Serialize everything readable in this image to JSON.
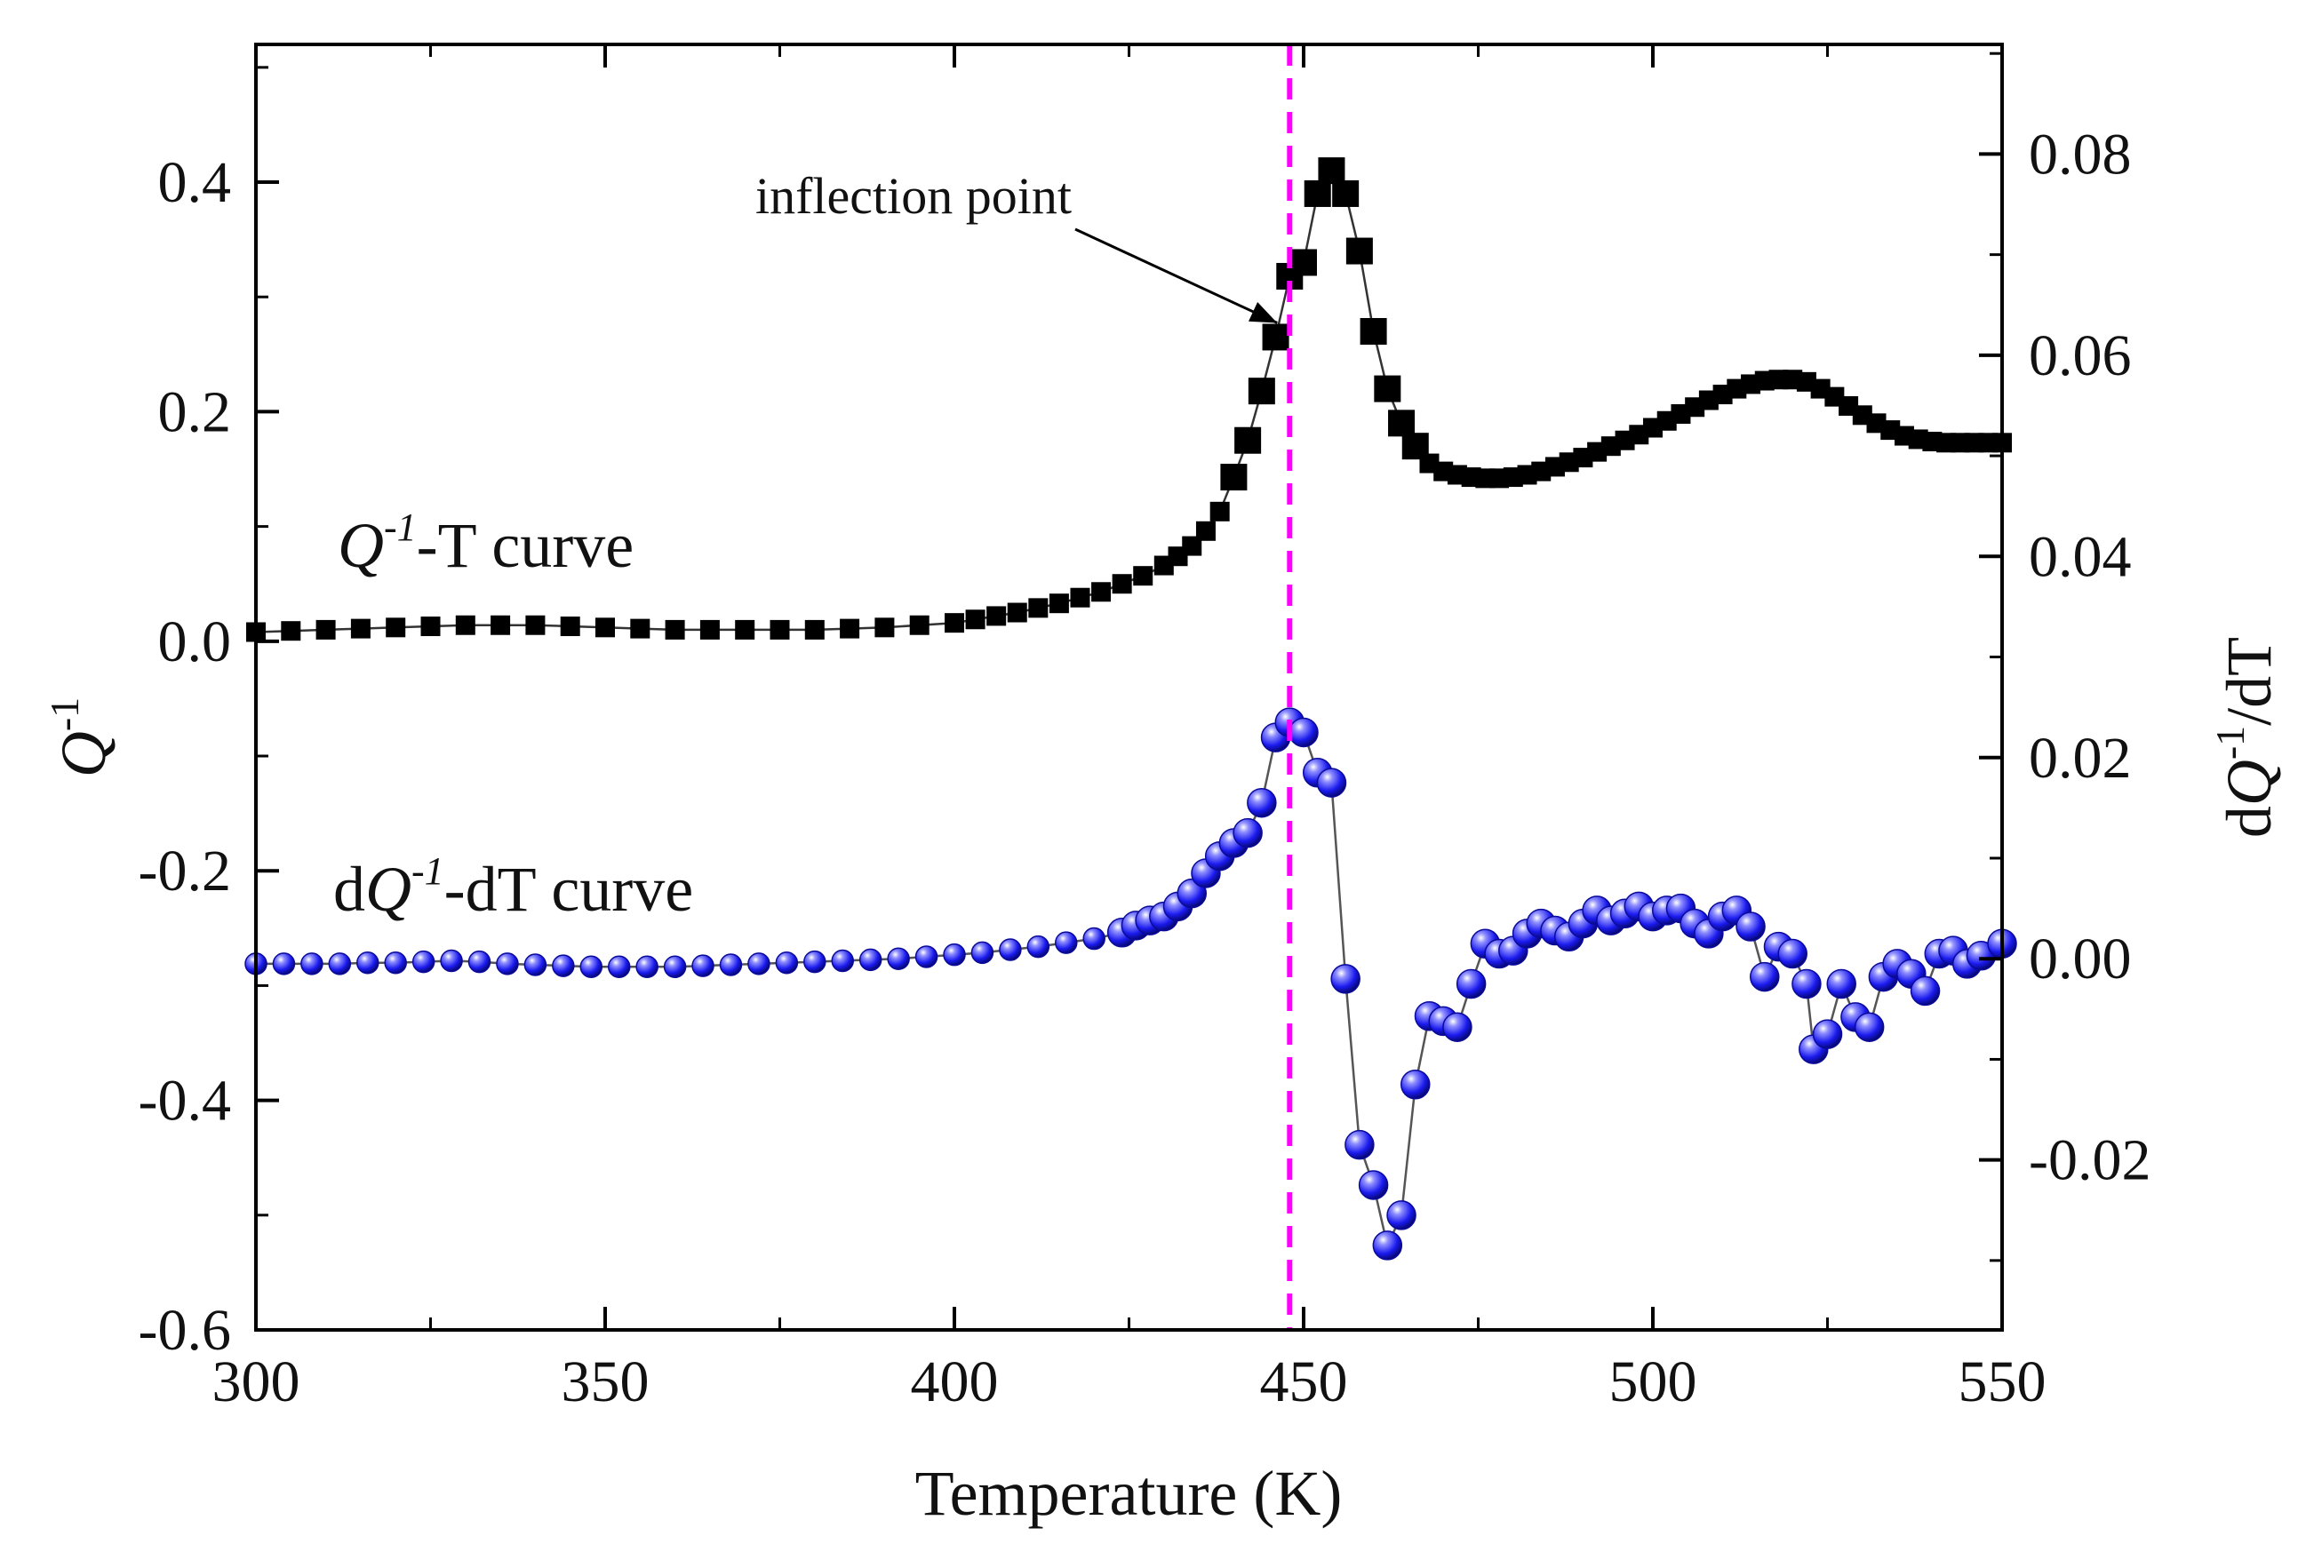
{
  "chart_data": {
    "type": "scatter",
    "title": "",
    "xlabel": "Temperature (K)",
    "ylabel_left": {
      "main": "Q",
      "sup": "-1"
    },
    "ylabel_right": {
      "pre": "d",
      "main": "Q",
      "sup": "-1",
      "post": "/dT"
    },
    "xlim": [
      300,
      550
    ],
    "ylim_left": [
      -0.6,
      0.52
    ],
    "ylim_right": [
      -0.0369,
      0.0909
    ],
    "x_ticks": [
      300,
      350,
      400,
      450,
      500,
      550
    ],
    "x_tick_labels": [
      "300",
      "350",
      "400",
      "450",
      "500",
      "550"
    ],
    "y_left_ticks": [
      -0.6,
      -0.4,
      -0.2,
      0.0,
      0.2,
      0.4
    ],
    "y_left_tick_labels": [
      "-0.6",
      "-0.4",
      "-0.2",
      "0.0",
      "0.2",
      "0.4"
    ],
    "y_right_ticks": [
      -0.02,
      0.0,
      0.02,
      0.04,
      0.06,
      0.08
    ],
    "y_right_tick_labels": [
      "-0.02",
      "0.00",
      "0.02",
      "0.04",
      "0.06",
      "0.08"
    ],
    "legend": [
      {
        "pre": "",
        "main": "Q",
        "sup": "-1",
        "post": "-T curve"
      },
      {
        "pre": "d",
        "main": "Q",
        "sup": "-1",
        "post": "-dT curve"
      }
    ],
    "annotation": {
      "text": "inflection point",
      "x": 448,
      "y": 0.265
    },
    "vline": {
      "x": 448,
      "color": "#ff00ff"
    },
    "series": [
      {
        "name": "Q-1-T curve",
        "axis": "left",
        "marker": "square",
        "color": "#000000",
        "x": [
          300,
          305,
          310,
          315,
          320,
          325,
          330,
          335,
          340,
          345,
          350,
          355,
          360,
          365,
          370,
          375,
          380,
          385,
          390,
          395,
          400,
          403,
          406,
          409,
          412,
          415,
          418,
          421,
          424,
          427,
          430,
          432,
          434,
          436,
          438,
          440,
          442,
          444,
          446,
          448,
          450,
          452,
          454,
          456,
          458,
          460,
          462,
          464,
          466,
          468,
          470,
          472,
          474,
          476,
          478,
          480,
          482,
          484,
          486,
          488,
          490,
          492,
          494,
          496,
          498,
          500,
          502,
          504,
          506,
          508,
          510,
          512,
          514,
          516,
          518,
          520,
          522,
          524,
          526,
          528,
          530,
          532,
          534,
          536,
          538,
          540,
          542,
          544,
          546,
          548,
          550
        ],
        "y": [
          0.008,
          0.009,
          0.01,
          0.011,
          0.012,
          0.013,
          0.014,
          0.014,
          0.014,
          0.013,
          0.012,
          0.011,
          0.01,
          0.01,
          0.01,
          0.01,
          0.01,
          0.011,
          0.012,
          0.014,
          0.016,
          0.019,
          0.022,
          0.025,
          0.029,
          0.033,
          0.038,
          0.043,
          0.05,
          0.057,
          0.066,
          0.074,
          0.083,
          0.096,
          0.113,
          0.143,
          0.175,
          0.218,
          0.265,
          0.318,
          0.33,
          0.39,
          0.41,
          0.39,
          0.34,
          0.27,
          0.22,
          0.19,
          0.17,
          0.155,
          0.148,
          0.145,
          0.143,
          0.142,
          0.142,
          0.143,
          0.145,
          0.148,
          0.152,
          0.156,
          0.16,
          0.165,
          0.17,
          0.175,
          0.18,
          0.186,
          0.192,
          0.198,
          0.204,
          0.21,
          0.215,
          0.22,
          0.224,
          0.227,
          0.228,
          0.228,
          0.226,
          0.22,
          0.213,
          0.205,
          0.197,
          0.19,
          0.184,
          0.179,
          0.176,
          0.174,
          0.173,
          0.173,
          0.173,
          0.173,
          0.173
        ]
      },
      {
        "name": "dQ-1-dT curve",
        "axis": "right",
        "marker": "sphere",
        "color": "#1a1aee",
        "x": [
          300,
          304,
          308,
          312,
          316,
          320,
          324,
          328,
          332,
          336,
          340,
          344,
          348,
          352,
          356,
          360,
          364,
          368,
          372,
          376,
          380,
          384,
          388,
          392,
          396,
          400,
          404,
          408,
          412,
          416,
          420,
          424,
          426,
          428,
          430,
          432,
          434,
          436,
          438,
          440,
          442,
          444,
          446,
          448,
          450,
          452,
          454,
          456,
          458,
          460,
          462,
          464,
          466,
          468,
          470,
          472,
          474,
          476,
          478,
          480,
          482,
          484,
          486,
          488,
          490,
          492,
          494,
          496,
          498,
          500,
          502,
          504,
          506,
          508,
          510,
          512,
          514,
          516,
          518,
          520,
          522,
          523,
          525,
          527,
          529,
          531,
          533,
          535,
          537,
          539,
          541,
          543,
          545,
          547,
          550
        ],
        "y": [
          -0.0005,
          -0.0005,
          -0.0005,
          -0.0005,
          -0.0004,
          -0.0004,
          -0.0003,
          -0.0002,
          -0.0003,
          -0.0005,
          -0.0006,
          -0.0007,
          -0.0008,
          -0.0008,
          -0.0008,
          -0.0008,
          -0.0007,
          -0.0006,
          -0.0005,
          -0.0004,
          -0.0003,
          -0.0002,
          -0.0001,
          0.0,
          0.0002,
          0.0004,
          0.0006,
          0.0009,
          0.0012,
          0.0016,
          0.002,
          0.0026,
          0.0033,
          0.0038,
          0.0042,
          0.0052,
          0.0065,
          0.0085,
          0.0102,
          0.0115,
          0.0125,
          0.0155,
          0.022,
          0.0235,
          0.0225,
          0.0185,
          0.0175,
          -0.002,
          -0.0185,
          -0.0225,
          -0.0285,
          -0.0255,
          -0.0125,
          -0.0057,
          -0.0062,
          -0.0068,
          -0.0025,
          0.0015,
          0.0005,
          0.0008,
          0.0025,
          0.0035,
          0.0028,
          0.0022,
          0.0035,
          0.0048,
          0.0038,
          0.0045,
          0.0052,
          0.0042,
          0.0048,
          0.005,
          0.0035,
          0.0025,
          0.0042,
          0.0048,
          0.0032,
          -0.0018,
          0.0012,
          0.0005,
          -0.0025,
          -0.009,
          -0.0075,
          -0.0025,
          -0.0058,
          -0.0068,
          -0.0018,
          -0.0005,
          -0.0015,
          -0.0032,
          0.0005,
          0.0008,
          -0.0005,
          0.0003,
          0.0015
        ]
      }
    ]
  }
}
